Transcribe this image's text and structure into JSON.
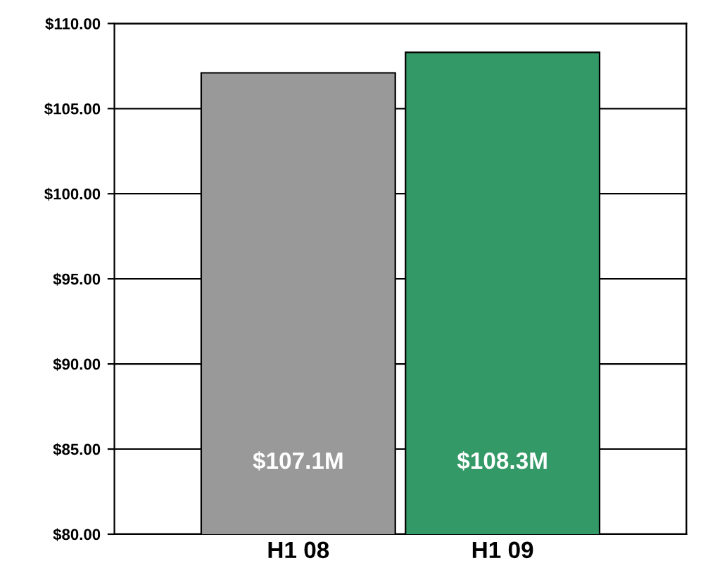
{
  "chart_data": {
    "type": "bar",
    "categories": [
      "H1 08",
      "H1 09"
    ],
    "values": [
      107.1,
      108.3
    ],
    "colors": [
      "#999999",
      "#339966"
    ],
    "value_labels": [
      "$107.1M",
      "$108.3M"
    ],
    "ylim": [
      80,
      110
    ],
    "yticks": [
      {
        "value": 80,
        "label": "$80.00"
      },
      {
        "value": 85,
        "label": "$85.00"
      },
      {
        "value": 90,
        "label": "$90.00"
      },
      {
        "value": 95,
        "label": "$95.00"
      },
      {
        "value": 100,
        "label": "$100.00"
      },
      {
        "value": 105,
        "label": "$105.00"
      },
      {
        "value": 110,
        "label": "$110.00"
      }
    ],
    "grid": "y"
  }
}
